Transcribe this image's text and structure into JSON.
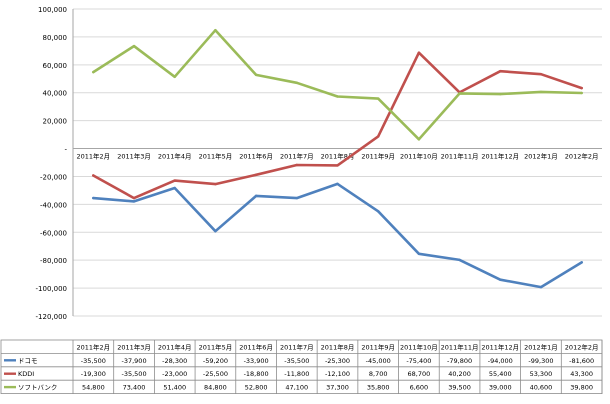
{
  "chart_data": {
    "type": "line",
    "title": "",
    "xlabel": "",
    "ylabel": "",
    "categories": [
      "2011年2月",
      "2011年3月",
      "2011年4月",
      "2011年5月",
      "2011年6月",
      "2011年7月",
      "2011年8月",
      "2011年9月",
      "2011年10月",
      "2011年11月",
      "2011年12月",
      "2012年1月",
      "2012年2月"
    ],
    "ylim": [
      -120000,
      100000
    ],
    "y_ticks": [
      100000,
      80000,
      60000,
      40000,
      20000,
      0,
      -20000,
      -40000,
      -60000,
      -80000,
      -100000,
      -120000
    ],
    "y_tick_labels": [
      "100,000",
      "80,000",
      "60,000",
      "40,000",
      "20,000",
      "-",
      "-20,000",
      "-40,000",
      "-60,000",
      "-80,000",
      "-100,000",
      "-120,000"
    ],
    "grid": "horizontal",
    "legend": "data table below chart",
    "series": [
      {
        "name": "ドコモ",
        "color": "#4f81bd",
        "values": [
          -35500,
          -37900,
          -28300,
          -59200,
          -33900,
          -35500,
          -25300,
          -45000,
          -75400,
          -79800,
          -94000,
          -99300,
          -81600
        ],
        "labels": [
          "-35,500",
          "-37,900",
          "-28,300",
          "-59,200",
          "-33,900",
          "-35,500",
          "-25,300",
          "-45,000",
          "-75,400",
          "-79,800",
          "-94,000",
          "-99,300",
          "-81,600"
        ]
      },
      {
        "name": "KDDI",
        "color": "#c0504d",
        "values": [
          -19300,
          -35500,
          -23000,
          -25500,
          -18800,
          -11800,
          -12100,
          8700,
          68700,
          40200,
          55400,
          53300,
          43300
        ],
        "labels": [
          "-19,300",
          "-35,500",
          "-23,000",
          "-25,500",
          "-18,800",
          "-11,800",
          "-12,100",
          "8,700",
          "68,700",
          "40,200",
          "55,400",
          "53,300",
          "43,300"
        ]
      },
      {
        "name": "ソフトバンク",
        "color": "#9bbb59",
        "values": [
          54800,
          73400,
          51400,
          84800,
          52800,
          47100,
          37300,
          35800,
          6600,
          39500,
          39000,
          40600,
          39800
        ],
        "labels": [
          "54,800",
          "73,400",
          "51,400",
          "84,800",
          "52,800",
          "47,100",
          "37,300",
          "35,800",
          "6,600",
          "39,500",
          "39,000",
          "40,600",
          "39,800"
        ]
      }
    ]
  }
}
